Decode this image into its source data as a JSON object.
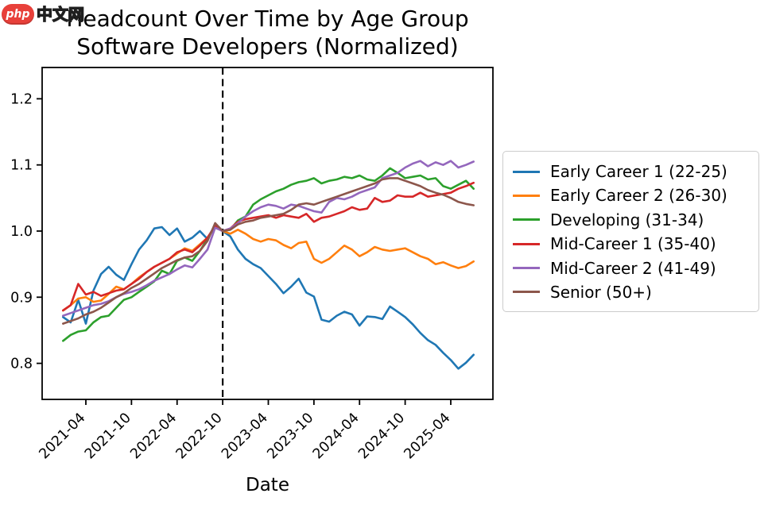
{
  "watermark": {
    "badge_text": "php",
    "site_text": "中文网"
  },
  "chart_data": {
    "type": "line",
    "title": "Headcount Over Time by Age Group",
    "subtitle": "Software Developers (Normalized)",
    "xlabel": "Date",
    "ylabel": "",
    "grid": false,
    "legend_position": "right-outside",
    "ylim": [
      0.745,
      1.247
    ],
    "y_ticks": [
      "0.8",
      "0.9",
      "1.0",
      "1.1",
      "1.2"
    ],
    "x_tick_labels": [
      "2021-04",
      "2021-10",
      "2022-04",
      "2022-10",
      "2023-04",
      "2023-10",
      "2024-04",
      "2024-10",
      "2025-04"
    ],
    "vline": {
      "x": "2022-10",
      "style": "dashed",
      "color": "#000000"
    },
    "normalization_note": "all series equal 1.0 at 2022-10",
    "x": [
      "2021-01",
      "2021-02",
      "2021-03",
      "2021-04",
      "2021-05",
      "2021-06",
      "2021-07",
      "2021-08",
      "2021-09",
      "2021-10",
      "2021-11",
      "2021-12",
      "2022-01",
      "2022-02",
      "2022-03",
      "2022-04",
      "2022-05",
      "2022-06",
      "2022-07",
      "2022-08",
      "2022-09",
      "2022-10",
      "2022-11",
      "2022-12",
      "2023-01",
      "2023-02",
      "2023-03",
      "2023-04",
      "2023-05",
      "2023-06",
      "2023-07",
      "2023-08",
      "2023-09",
      "2023-10",
      "2023-11",
      "2023-12",
      "2024-01",
      "2024-02",
      "2024-03",
      "2024-04",
      "2024-05",
      "2024-06",
      "2024-07",
      "2024-08",
      "2024-09",
      "2024-10",
      "2024-11",
      "2024-12",
      "2025-01",
      "2025-02",
      "2025-03",
      "2025-04",
      "2025-05",
      "2025-06",
      "2025-07"
    ],
    "series": [
      {
        "name": "Early Career 1 (22-25)",
        "color": "#1f77b4",
        "values": [
          0.87,
          0.862,
          0.896,
          0.86,
          0.91,
          0.935,
          0.946,
          0.934,
          0.926,
          0.95,
          0.972,
          0.986,
          1.004,
          1.006,
          0.994,
          1.004,
          0.984,
          0.99,
          1.0,
          0.988,
          1.01,
          1.0,
          0.992,
          0.972,
          0.958,
          0.95,
          0.944,
          0.932,
          0.92,
          0.906,
          0.916,
          0.928,
          0.907,
          0.901,
          0.866,
          0.863,
          0.872,
          0.878,
          0.874,
          0.857,
          0.871,
          0.87,
          0.867,
          0.886,
          0.878,
          0.87,
          0.859,
          0.846,
          0.835,
          0.828,
          0.816,
          0.805,
          0.792,
          0.801,
          0.813
        ]
      },
      {
        "name": "Early Career 2 (26-30)",
        "color": "#ff7f0e",
        "values": [
          0.88,
          0.888,
          0.898,
          0.9,
          0.893,
          0.895,
          0.905,
          0.916,
          0.912,
          0.92,
          0.93,
          0.938,
          0.946,
          0.952,
          0.958,
          0.966,
          0.974,
          0.97,
          0.98,
          0.99,
          1.006,
          1.0,
          0.996,
          1.002,
          0.996,
          0.988,
          0.984,
          0.988,
          0.986,
          0.979,
          0.974,
          0.982,
          0.984,
          0.958,
          0.952,
          0.958,
          0.968,
          0.978,
          0.972,
          0.962,
          0.968,
          0.976,
          0.972,
          0.97,
          0.972,
          0.974,
          0.968,
          0.962,
          0.958,
          0.95,
          0.953,
          0.948,
          0.944,
          0.947,
          0.954
        ]
      },
      {
        "name": "Developing (31-34)",
        "color": "#2ca02c",
        "values": [
          0.834,
          0.843,
          0.848,
          0.85,
          0.862,
          0.87,
          0.872,
          0.884,
          0.896,
          0.9,
          0.908,
          0.916,
          0.924,
          0.94,
          0.935,
          0.955,
          0.96,
          0.955,
          0.97,
          0.988,
          1.008,
          1.0,
          1.002,
          1.016,
          1.022,
          1.04,
          1.048,
          1.054,
          1.06,
          1.064,
          1.07,
          1.074,
          1.076,
          1.08,
          1.072,
          1.076,
          1.078,
          1.082,
          1.08,
          1.084,
          1.078,
          1.076,
          1.084,
          1.095,
          1.088,
          1.08,
          1.082,
          1.084,
          1.078,
          1.08,
          1.068,
          1.064,
          1.07,
          1.076,
          1.064
        ]
      },
      {
        "name": "Mid-Career 1 (35-40)",
        "color": "#d62728",
        "values": [
          0.88,
          0.888,
          0.92,
          0.904,
          0.908,
          0.902,
          0.906,
          0.91,
          0.912,
          0.92,
          0.928,
          0.938,
          0.946,
          0.952,
          0.958,
          0.968,
          0.972,
          0.968,
          0.978,
          0.99,
          1.008,
          1.0,
          1.004,
          1.014,
          1.018,
          1.02,
          1.022,
          1.024,
          1.02,
          1.024,
          1.022,
          1.02,
          1.026,
          1.014,
          1.02,
          1.022,
          1.026,
          1.03,
          1.036,
          1.032,
          1.034,
          1.05,
          1.044,
          1.046,
          1.054,
          1.052,
          1.052,
          1.058,
          1.052,
          1.054,
          1.056,
          1.058,
          1.064,
          1.068,
          1.073
        ]
      },
      {
        "name": "Mid-Career 2 (41-49)",
        "color": "#9467bd",
        "values": [
          0.872,
          0.876,
          0.88,
          0.884,
          0.888,
          0.89,
          0.894,
          0.9,
          0.905,
          0.908,
          0.912,
          0.918,
          0.925,
          0.93,
          0.935,
          0.942,
          0.948,
          0.945,
          0.958,
          0.972,
          1.005,
          1.0,
          1.004,
          1.012,
          1.022,
          1.03,
          1.036,
          1.04,
          1.038,
          1.034,
          1.04,
          1.038,
          1.034,
          1.03,
          1.028,
          1.044,
          1.05,
          1.048,
          1.052,
          1.058,
          1.062,
          1.066,
          1.08,
          1.084,
          1.088,
          1.096,
          1.102,
          1.106,
          1.098,
          1.104,
          1.1,
          1.106,
          1.096,
          1.1,
          1.105
        ]
      },
      {
        "name": "Senior (50+)",
        "color": "#8c564b",
        "values": [
          0.86,
          0.864,
          0.868,
          0.874,
          0.878,
          0.884,
          0.892,
          0.9,
          0.906,
          0.914,
          0.92,
          0.928,
          0.936,
          0.944,
          0.95,
          0.956,
          0.96,
          0.962,
          0.97,
          0.985,
          1.012,
          1.0,
          1.002,
          1.01,
          1.014,
          1.016,
          1.02,
          1.022,
          1.024,
          1.026,
          1.032,
          1.04,
          1.042,
          1.04,
          1.044,
          1.048,
          1.052,
          1.056,
          1.06,
          1.064,
          1.068,
          1.072,
          1.078,
          1.08,
          1.08,
          1.076,
          1.072,
          1.068,
          1.062,
          1.058,
          1.055,
          1.05,
          1.044,
          1.041,
          1.039
        ]
      }
    ]
  }
}
